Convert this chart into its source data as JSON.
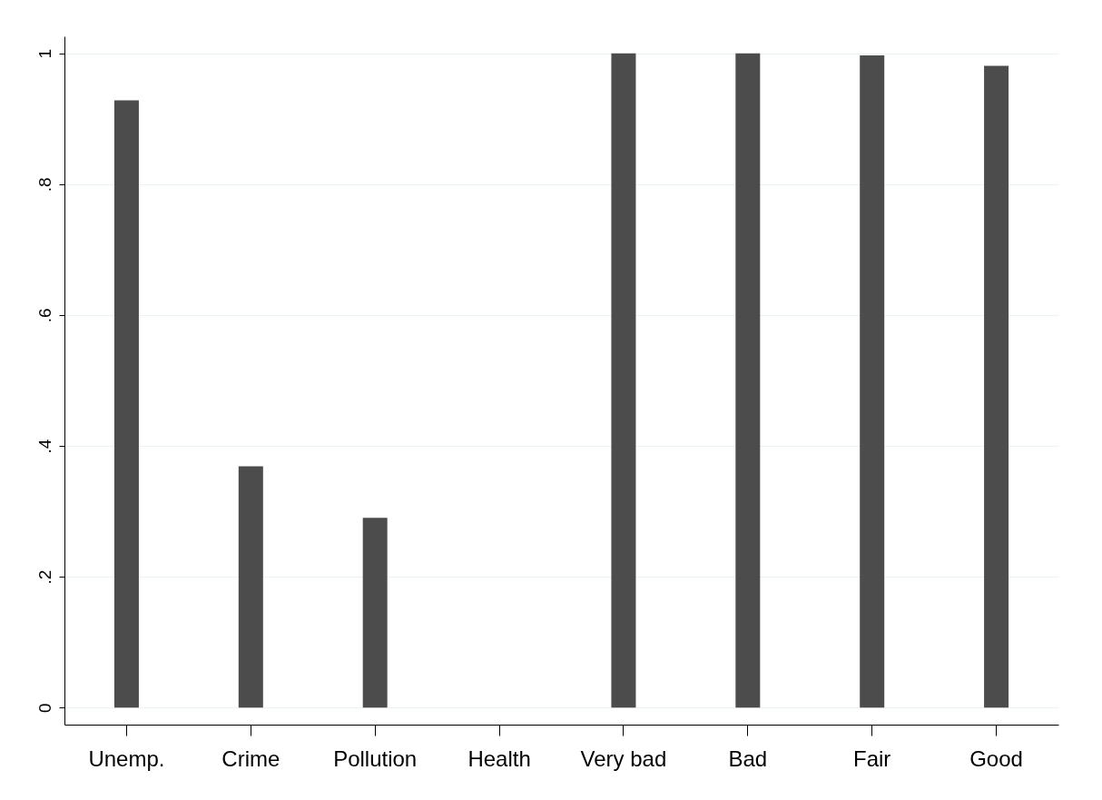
{
  "chart_data": {
    "type": "bar",
    "categories": [
      "Unemp.",
      "Crime",
      "Pollution",
      "Health",
      "Very bad",
      "Bad",
      "Fair",
      "Good"
    ],
    "values": [
      0.928,
      0.369,
      0.29,
      null,
      1.0,
      1.0,
      0.997,
      0.981
    ],
    "color": "#4c4c4c",
    "ylim": [
      -0.026,
      1.026
    ],
    "yticks": [
      0,
      {
        "value": 0.2,
        "label": ".2"
      },
      {
        "value": 0.4,
        "label": ".4"
      },
      {
        "value": 0.6,
        "label": ".6"
      },
      {
        "value": 0.8,
        "label": ".8"
      },
      1
    ],
    "grid": "y"
  }
}
